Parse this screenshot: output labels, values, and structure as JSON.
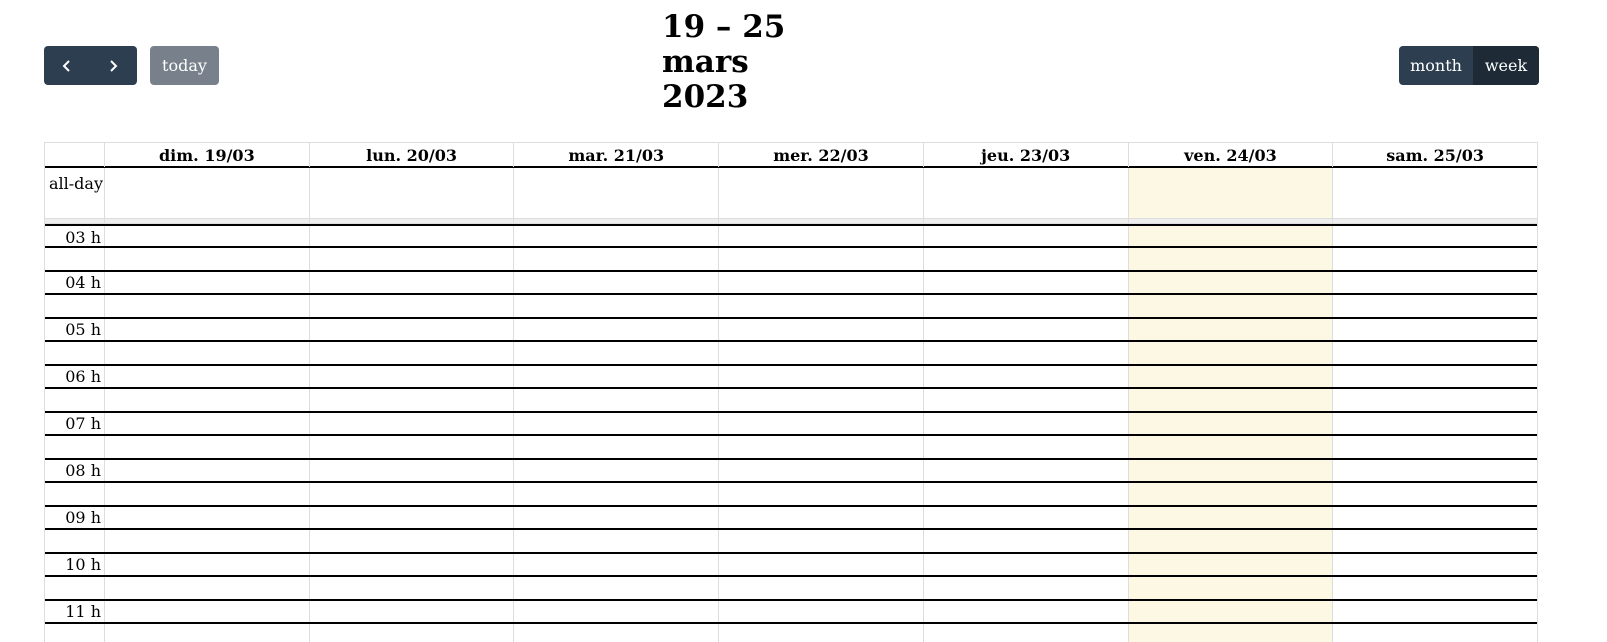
{
  "toolbar": {
    "prev_label": "previous",
    "next_label": "next",
    "today_label": "today",
    "title_lines": [
      "19 – 25",
      "mars",
      "2023"
    ],
    "views": [
      "month",
      "week"
    ],
    "active_view": "week"
  },
  "calendar": {
    "allday_label": "all-day",
    "days": [
      {
        "label": "dim. 19/03",
        "today": false
      },
      {
        "label": "lun. 20/03",
        "today": false
      },
      {
        "label": "mar. 21/03",
        "today": false
      },
      {
        "label": "mer. 22/03",
        "today": false
      },
      {
        "label": "jeu. 23/03",
        "today": false
      },
      {
        "label": "ven. 24/03",
        "today": true
      },
      {
        "label": "sam. 25/03",
        "today": false
      }
    ],
    "hours": [
      "03 h",
      "04 h",
      "05 h",
      "06 h",
      "07 h",
      "08 h",
      "09 h",
      "10 h",
      "11 h"
    ]
  },
  "colors": {
    "button_bg": "#2c3e50",
    "button_active_bg": "#1e2b37",
    "today_button_bg": "#78818b",
    "today_highlight": "#fcf8e3"
  }
}
